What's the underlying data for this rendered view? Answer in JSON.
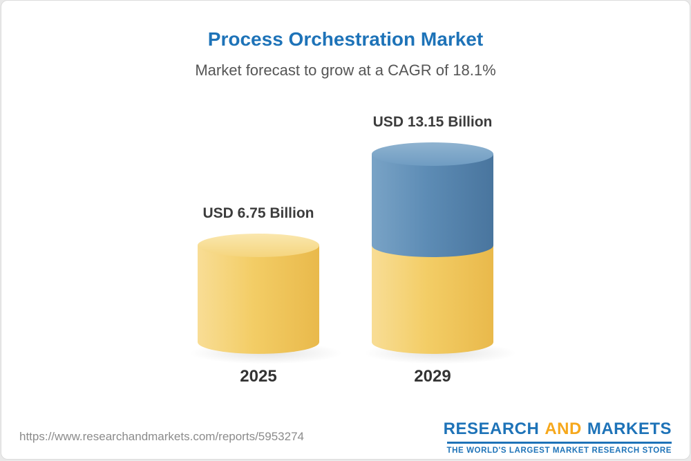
{
  "chart_data": {
    "type": "bar",
    "title": "Process Orchestration Market",
    "subtitle": "Market forecast to grow at a CAGR of 18.1%",
    "unit": "USD Billion",
    "categories": [
      "2025",
      "2029"
    ],
    "values": [
      6.75,
      13.15
    ],
    "value_labels": [
      "USD 6.75 Billion",
      "USD 13.15 Billion"
    ],
    "bars": [
      {
        "category": "2025",
        "label": "USD 6.75 Billion",
        "value": 6.75,
        "segments": [
          {
            "name": "base-2025",
            "color": "gold",
            "value": 6.75
          }
        ]
      },
      {
        "category": "2029",
        "label": "USD 13.15 Billion",
        "value": 13.15,
        "segments": [
          {
            "name": "growth-2025-to-2029",
            "color": "blue",
            "value": 6.4
          },
          {
            "name": "base-2025",
            "color": "gold",
            "value": 6.75
          }
        ]
      }
    ],
    "colors": {
      "gold": "#f3cd66",
      "blue": "#5d8cb5",
      "title_blue": "#1e73b8"
    },
    "legend": "none",
    "grid": "off"
  },
  "footer": {
    "url": "https://www.researchandmarkets.com/reports/5953274",
    "logo": {
      "research": "RESEARCH",
      "and": "AND",
      "markets": "MARKETS",
      "tagline": "THE WORLD'S LARGEST MARKET RESEARCH STORE"
    }
  }
}
